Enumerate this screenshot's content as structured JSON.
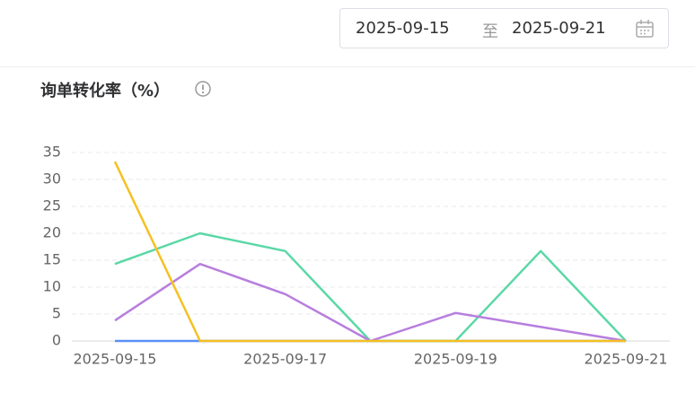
{
  "date_range": {
    "start": "2025-09-15",
    "separator": "至",
    "end": "2025-09-21"
  },
  "chart_data": {
    "type": "line",
    "title": "询单转化率（%）",
    "categories": [
      "2025-09-15",
      null,
      "2025-09-17",
      null,
      "2025-09-19",
      null,
      "2025-09-21"
    ],
    "series": [
      {
        "color": "#5b8ff9",
        "values": [
          0,
          0,
          0,
          0,
          0,
          0,
          0
        ]
      },
      {
        "color": "#5ad8a6",
        "values": [
          14.3,
          20,
          16.7,
          0,
          0,
          16.7,
          0
        ]
      },
      {
        "color": "#b77ede",
        "values": [
          3.8,
          14.3,
          8.7,
          0,
          5.2,
          2.6,
          0
        ]
      },
      {
        "color": "#f6c022",
        "values": [
          33.3,
          0,
          0,
          0,
          0,
          0,
          0
        ]
      }
    ],
    "ylim": [
      0,
      35
    ],
    "yticks": [
      0,
      5,
      10,
      15,
      20,
      25,
      30,
      35
    ],
    "grid": true
  }
}
